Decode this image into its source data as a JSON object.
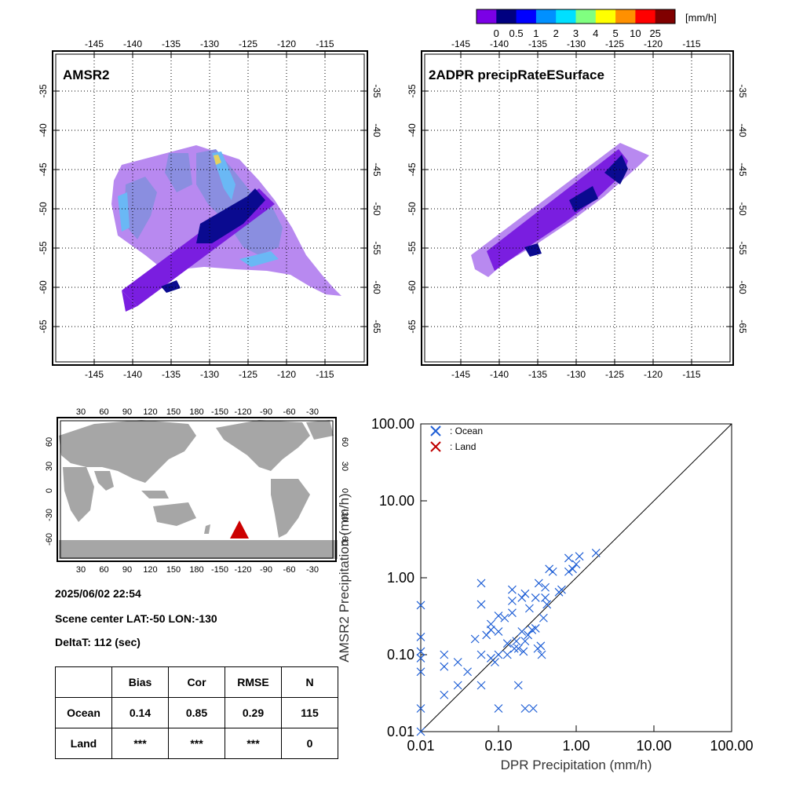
{
  "colorbar": {
    "unit": "[mm/h]",
    "labels": [
      "0",
      "0.5",
      "1",
      "2",
      "3",
      "4",
      "5",
      "10",
      "25"
    ],
    "colors": [
      "#7b00e6",
      "#000080",
      "#0000ff",
      "#0090ff",
      "#00e0ff",
      "#80ff80",
      "#ffff00",
      "#ff9000",
      "#ff0000",
      "#800000"
    ]
  },
  "maps": {
    "lon_ticks": [
      "-145",
      "-140",
      "-135",
      "-130",
      "-125",
      "-120",
      "-115"
    ],
    "lat_ticks": [
      "-35",
      "-40",
      "-45",
      "-50",
      "-55",
      "-60",
      "-65"
    ],
    "amsr2_title": "AMSR2",
    "dpr_title": "2ADPR precipRateESurface"
  },
  "world_map": {
    "lon_ticks": [
      "30",
      "60",
      "90",
      "120",
      "150",
      "180",
      "-150",
      "-120",
      "-90",
      "-60",
      "-30"
    ],
    "lat_ticks": [
      "60",
      "30",
      "0",
      "-30",
      "-60"
    ],
    "marker_color": "#cc0000",
    "marker": {
      "lat": -50,
      "lon": -130
    }
  },
  "info": {
    "datetime": "2025/06/02 22:54",
    "scene_center": "Scene center LAT:-50   LON:-130",
    "delta_t": "DeltaT:  112 (sec)"
  },
  "stats_table": {
    "headers": [
      "",
      "Bias",
      "Cor",
      "RMSE",
      "N"
    ],
    "rows": [
      [
        "Ocean",
        "0.14",
        "0.85",
        "0.29",
        "115"
      ],
      [
        "Land",
        "***",
        "***",
        "***",
        "0"
      ]
    ]
  },
  "chart_data": {
    "type": "scatter",
    "xlabel": "DPR Precipitation (mm/h)",
    "ylabel": "AMSR2 Precipitation (mm/h)",
    "xscale": "log",
    "yscale": "log",
    "xlim": [
      0.01,
      100
    ],
    "ylim": [
      0.01,
      100
    ],
    "x_ticks": [
      "0.01",
      "0.10",
      "1.00",
      "10.00",
      "100.00"
    ],
    "y_ticks": [
      "0.01",
      "0.10",
      "1.00",
      "10.00",
      "100.00"
    ],
    "legend_position": "top-left",
    "series": [
      {
        "name": ": Ocean",
        "color": "#1f5fd6",
        "marker": "x",
        "points": [
          [
            0.01,
            0.01
          ],
          [
            0.01,
            0.02
          ],
          [
            0.01,
            0.06
          ],
          [
            0.01,
            0.09
          ],
          [
            0.01,
            0.11
          ],
          [
            0.01,
            0.17
          ],
          [
            0.01,
            0.44
          ],
          [
            0.02,
            0.03
          ],
          [
            0.02,
            0.07
          ],
          [
            0.02,
            0.1
          ],
          [
            0.03,
            0.04
          ],
          [
            0.03,
            0.08
          ],
          [
            0.04,
            0.06
          ],
          [
            0.05,
            0.16
          ],
          [
            0.06,
            0.04
          ],
          [
            0.06,
            0.1
          ],
          [
            0.06,
            0.45
          ],
          [
            0.06,
            0.85
          ],
          [
            0.07,
            0.18
          ],
          [
            0.08,
            0.09
          ],
          [
            0.08,
            0.21
          ],
          [
            0.08,
            0.25
          ],
          [
            0.09,
            0.08
          ],
          [
            0.1,
            0.02
          ],
          [
            0.1,
            0.1
          ],
          [
            0.1,
            0.2
          ],
          [
            0.1,
            0.32
          ],
          [
            0.12,
            0.3
          ],
          [
            0.13,
            0.1
          ],
          [
            0.13,
            0.14
          ],
          [
            0.15,
            0.35
          ],
          [
            0.15,
            0.5
          ],
          [
            0.15,
            0.7
          ],
          [
            0.16,
            0.12
          ],
          [
            0.17,
            0.15
          ],
          [
            0.18,
            0.04
          ],
          [
            0.18,
            0.12
          ],
          [
            0.2,
            0.2
          ],
          [
            0.2,
            0.55
          ],
          [
            0.21,
            0.11
          ],
          [
            0.22,
            0.02
          ],
          [
            0.22,
            0.15
          ],
          [
            0.22,
            0.62
          ],
          [
            0.24,
            0.18
          ],
          [
            0.25,
            0.4
          ],
          [
            0.27,
            0.21
          ],
          [
            0.28,
            0.02
          ],
          [
            0.3,
            0.22
          ],
          [
            0.3,
            0.55
          ],
          [
            0.32,
            0.12
          ],
          [
            0.33,
            0.85
          ],
          [
            0.35,
            0.13
          ],
          [
            0.36,
            0.1
          ],
          [
            0.38,
            0.3
          ],
          [
            0.4,
            0.55
          ],
          [
            0.4,
            0.75
          ],
          [
            0.42,
            0.45
          ],
          [
            0.45,
            1.3
          ],
          [
            0.5,
            1.2
          ],
          [
            0.6,
            0.65
          ],
          [
            0.65,
            0.7
          ],
          [
            0.8,
            1.2
          ],
          [
            0.8,
            1.8
          ],
          [
            0.9,
            1.3
          ],
          [
            1,
            1.5
          ],
          [
            1.1,
            1.9
          ],
          [
            1.8,
            2.1
          ]
        ]
      },
      {
        "name": ": Land",
        "color": "#c00000",
        "marker": "x",
        "points": []
      }
    ]
  }
}
